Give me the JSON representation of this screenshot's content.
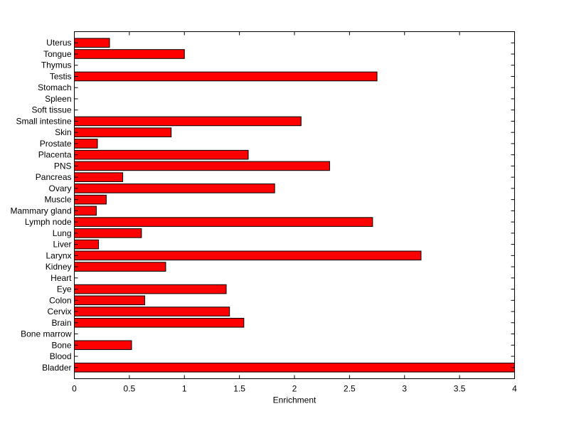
{
  "chart_data": {
    "type": "bar",
    "orientation": "horizontal",
    "title": "",
    "xlabel": "Enrichment",
    "ylabel": "",
    "xlim": [
      0,
      4
    ],
    "xticks": [
      "0",
      "0.5",
      "1",
      "1.5",
      "2",
      "2.5",
      "3",
      "3.5",
      "4"
    ],
    "categories": [
      "Bladder",
      "Blood",
      "Bone",
      "Bone marrow",
      "Brain",
      "Cervix",
      "Colon",
      "Eye",
      "Heart",
      "Kidney",
      "Larynx",
      "Liver",
      "Lung",
      "Lymph node",
      "Mammary gland",
      "Muscle",
      "Ovary",
      "Pancreas",
      "PNS",
      "Placenta",
      "Prostate",
      "Skin",
      "Small intestine",
      "Soft tissue",
      "Spleen",
      "Stomach",
      "Testis",
      "Thymus",
      "Tongue",
      "Uterus"
    ],
    "values": [
      4.0,
      0,
      0.52,
      0,
      1.54,
      1.41,
      0.64,
      1.38,
      0,
      0.83,
      3.15,
      0.22,
      0.61,
      2.71,
      0.2,
      0.29,
      1.82,
      0.44,
      2.32,
      1.58,
      0.21,
      0.88,
      2.06,
      0,
      0,
      0,
      2.75,
      0,
      1.0,
      0.32
    ],
    "bar_color": "#ff0000",
    "edge_color": "#000000",
    "grid": false,
    "legend": "none"
  }
}
